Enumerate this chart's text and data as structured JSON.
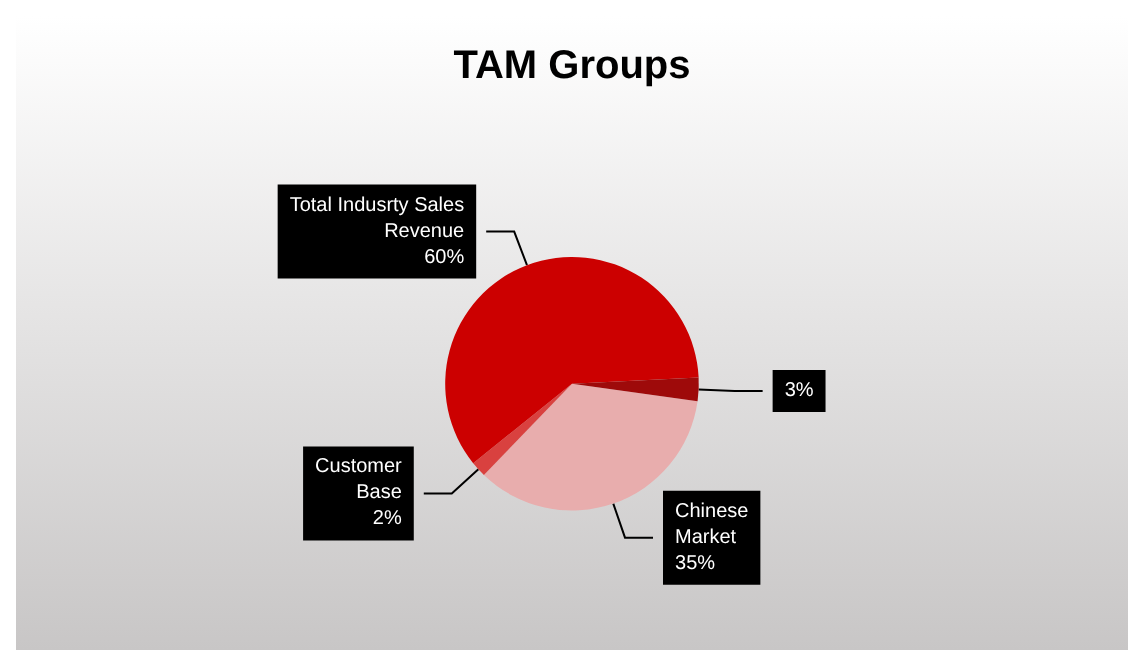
{
  "chart_data": {
    "type": "pie",
    "title": "TAM Groups",
    "categories": [
      "Chinese Market",
      "Customer Base",
      "Total Indusrty Sales Revenue",
      null
    ],
    "values": [
      35,
      2,
      60,
      3
    ],
    "colors": [
      "#e8adad",
      "#d9413f",
      "#cc0000",
      "#9e0a0a"
    ],
    "value_labels": [
      "35%",
      "2%",
      "60%",
      "3%"
    ],
    "legend": false
  }
}
